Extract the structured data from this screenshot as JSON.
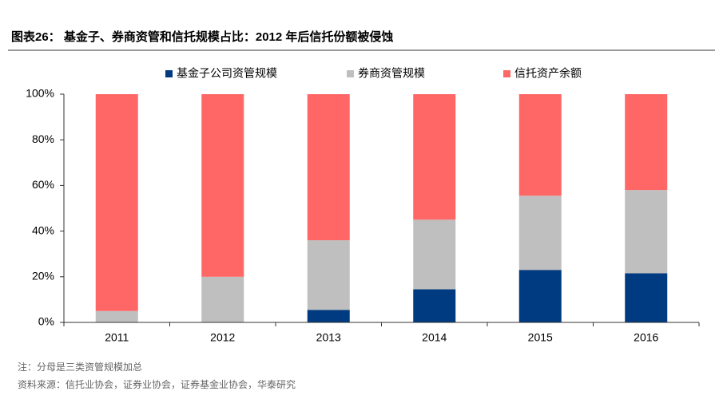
{
  "chart_data": {
    "type": "stacked_bar",
    "title": "图表26：  基金子、券商资管和信托规模占比：2012 年后信托份额被侵蚀",
    "categories": [
      "2011",
      "2012",
      "2013",
      "2014",
      "2015",
      "2016"
    ],
    "series": [
      {
        "name": "基金子公司资管规模",
        "color": "#003A80",
        "values": [
          0,
          0,
          5.5,
          14.5,
          23,
          21.5
        ]
      },
      {
        "name": "券商资管规模",
        "color": "#BFBFBF",
        "values": [
          5,
          20,
          30.5,
          30.5,
          32.5,
          36.5
        ]
      },
      {
        "name": "信托资产余额",
        "color": "#FF6666",
        "values": [
          95,
          80,
          64,
          55,
          44.5,
          42
        ]
      }
    ],
    "ylim": [
      0,
      100
    ],
    "yticks": [
      {
        "value": 0,
        "label": "0%"
      },
      {
        "value": 20,
        "label": "20%"
      },
      {
        "value": 40,
        "label": "40%"
      },
      {
        "value": 60,
        "label": "60%"
      },
      {
        "value": 80,
        "label": "80%"
      },
      {
        "value": 100,
        "label": "100%"
      }
    ],
    "notes": [
      "注：分母是三类资管规模加总",
      "资料来源：信托业协会，证券业协会，证券基金业协会，华泰研究"
    ]
  }
}
